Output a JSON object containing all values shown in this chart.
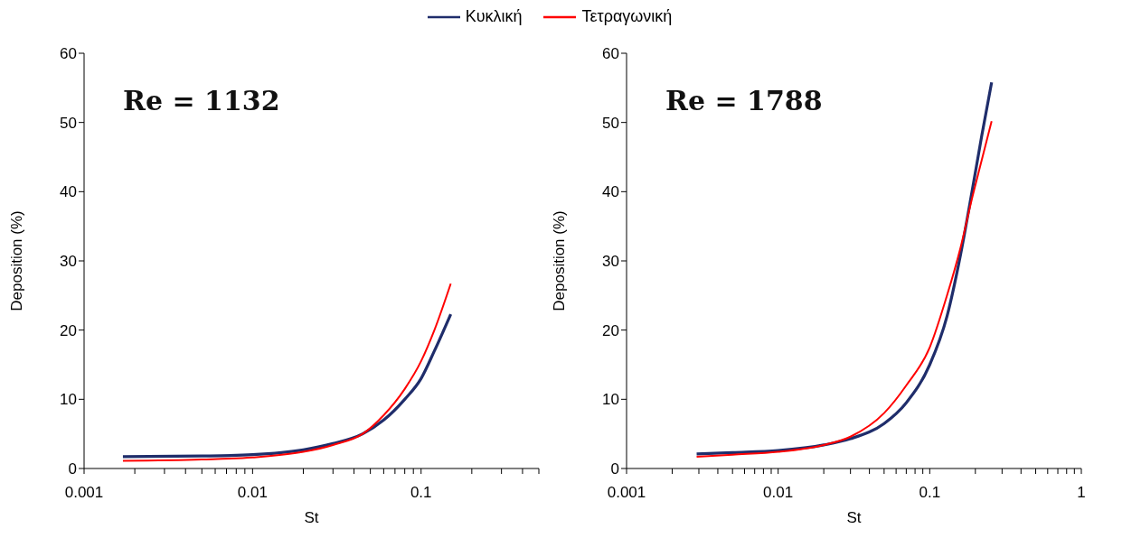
{
  "chart_data": [
    {
      "type": "line",
      "xlabel": "St",
      "ylabel": "Deposition (%)",
      "annotations": [
        "Re = 1132"
      ],
      "log": "x",
      "legend": "top",
      "marker": "none",
      "line_style": "solid",
      "xlim": [
        0.001,
        0.5
      ],
      "xticks": [
        0.001,
        {
          "value": 0.002,
          "label": null
        },
        {
          "value": 0.003,
          "label": null
        },
        {
          "value": 0.004,
          "label": null
        },
        {
          "value": 0.005,
          "label": null
        },
        {
          "value": 0.006,
          "label": null
        },
        {
          "value": 0.007,
          "label": null
        },
        {
          "value": 0.008,
          "label": null
        },
        {
          "value": 0.009,
          "label": null
        },
        0.01,
        {
          "value": 0.02,
          "label": null
        },
        {
          "value": 0.03,
          "label": null
        },
        {
          "value": 0.04,
          "label": null
        },
        {
          "value": 0.05,
          "label": null
        },
        {
          "value": 0.06,
          "label": null
        },
        {
          "value": 0.07,
          "label": null
        },
        {
          "value": 0.08,
          "label": null
        },
        {
          "value": 0.09,
          "label": null
        },
        0.1,
        {
          "value": 0.2,
          "label": null
        },
        {
          "value": 0.3,
          "label": null
        },
        {
          "value": 0.4,
          "label": null
        },
        {
          "value": 0.5,
          "label": null
        }
      ],
      "ylim": [
        0,
        60
      ],
      "yticks": [
        0,
        10,
        20,
        30,
        40,
        50,
        60
      ],
      "series": [
        {
          "name": "Κυκλική",
          "color": "#1f2d6b",
          "x": [
            0.0017,
            0.005,
            0.01,
            0.02,
            0.03,
            0.045,
            0.06,
            0.08,
            0.1,
            0.12,
            0.15
          ],
          "values": [
            1.7,
            1.8,
            2.0,
            2.7,
            3.6,
            5,
            7,
            10,
            13,
            17,
            22.3
          ]
        },
        {
          "name": "Τετραγωνική",
          "color": "#ff0000",
          "x": [
            0.0017,
            0.005,
            0.01,
            0.02,
            0.03,
            0.045,
            0.06,
            0.08,
            0.1,
            0.12,
            0.15
          ],
          "values": [
            1.1,
            1.3,
            1.6,
            2.4,
            3.4,
            5,
            7.7,
            11.5,
            15.5,
            20,
            26.7
          ]
        }
      ]
    },
    {
      "type": "line",
      "xlabel": "St",
      "ylabel": "Deposition (%)",
      "annotations": [
        "Re = 1788"
      ],
      "log": "x",
      "marker": "none",
      "line_style": "solid",
      "xlim": [
        0.001,
        1
      ],
      "xticks": [
        0.001,
        {
          "value": 0.002,
          "label": null
        },
        {
          "value": 0.003,
          "label": null
        },
        {
          "value": 0.004,
          "label": null
        },
        {
          "value": 0.005,
          "label": null
        },
        {
          "value": 0.006,
          "label": null
        },
        {
          "value": 0.007,
          "label": null
        },
        {
          "value": 0.008,
          "label": null
        },
        {
          "value": 0.009,
          "label": null
        },
        0.01,
        {
          "value": 0.02,
          "label": null
        },
        {
          "value": 0.03,
          "label": null
        },
        {
          "value": 0.04,
          "label": null
        },
        {
          "value": 0.05,
          "label": null
        },
        {
          "value": 0.06,
          "label": null
        },
        {
          "value": 0.07,
          "label": null
        },
        {
          "value": 0.08,
          "label": null
        },
        {
          "value": 0.09,
          "label": null
        },
        0.1,
        {
          "value": 0.2,
          "label": null
        },
        {
          "value": 0.3,
          "label": null
        },
        {
          "value": 0.4,
          "label": null
        },
        {
          "value": 0.5,
          "label": null
        },
        {
          "value": 0.6,
          "label": null
        },
        {
          "value": 0.7,
          "label": null
        },
        {
          "value": 0.8,
          "label": null
        },
        {
          "value": 0.9,
          "label": null
        },
        1
      ],
      "ylim": [
        0,
        60
      ],
      "yticks": [
        0,
        10,
        20,
        30,
        40,
        50,
        60
      ],
      "series": [
        {
          "color": "#1f2d6b",
          "x": [
            0.0029,
            0.005,
            0.01,
            0.02,
            0.03,
            0.05,
            0.07,
            0.1,
            0.13,
            0.16,
            0.19,
            0.22,
            0.256
          ],
          "values": [
            2.1,
            2.3,
            2.6,
            3.4,
            4.3,
            6.5,
            9.5,
            15,
            22,
            31,
            40,
            48,
            55.8
          ]
        },
        {
          "color": "#ff0000",
          "x": [
            0.0029,
            0.005,
            0.01,
            0.02,
            0.03,
            0.05,
            0.07,
            0.1,
            0.13,
            0.16,
            0.19,
            0.22,
            0.256
          ],
          "values": [
            1.7,
            2.0,
            2.4,
            3.4,
            4.6,
            8,
            12,
            17.5,
            25,
            32,
            39,
            44.5,
            50.2
          ]
        }
      ]
    }
  ]
}
